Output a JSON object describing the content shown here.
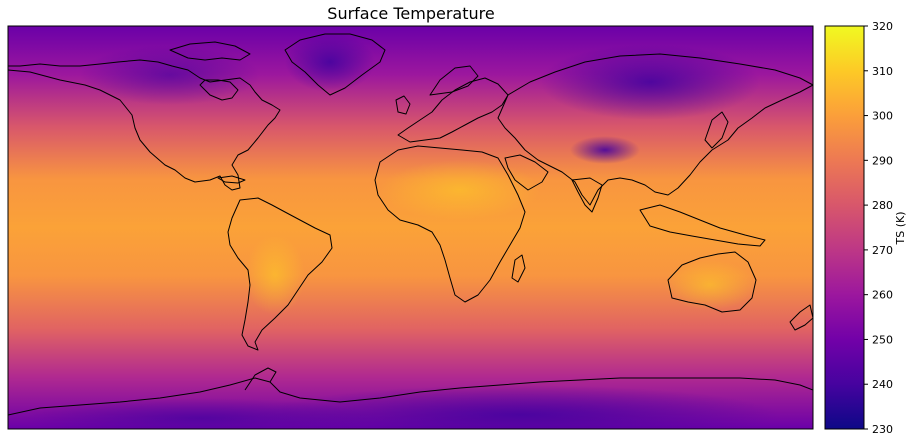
{
  "title": "Surface Temperature",
  "colorbar": {
    "label": "TS (K)",
    "min": 230,
    "max": 320,
    "ticks": [
      230,
      240,
      250,
      260,
      270,
      280,
      290,
      300,
      310,
      320
    ],
    "colormap": "plasma",
    "stops": [
      "#0d0887",
      "#46039f",
      "#7201a8",
      "#9c179e",
      "#bd3786",
      "#d8576b",
      "#ed7953",
      "#fb9f3a",
      "#fdca26",
      "#f0f921"
    ]
  },
  "map": {
    "projection": "plate-carree",
    "coastline_color": "#000000",
    "frame_color": "#000000"
  },
  "chart_data": {
    "type": "heatmap",
    "title": "Surface Temperature",
    "colorbar_label": "TS (K)",
    "value_range": [
      230,
      320
    ],
    "grid": false
  }
}
